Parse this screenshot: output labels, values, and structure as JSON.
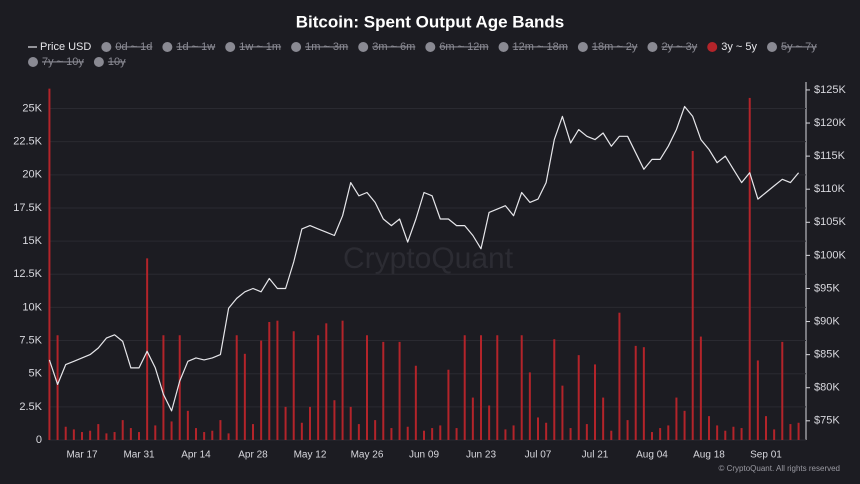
{
  "chart_data": {
    "type": "bar_line",
    "title": "Bitcoin: Spent Output Age Bands",
    "watermark": "CryptoQuant",
    "footer": "© CryptoQuant. All rights reserved",
    "legend_position": "top",
    "grid": true,
    "categories": [
      null,
      null,
      null,
      null,
      "Mar 17",
      null,
      null,
      null,
      null,
      null,
      null,
      "Mar 31",
      null,
      null,
      null,
      null,
      null,
      null,
      "Apr 14",
      null,
      null,
      null,
      null,
      null,
      null,
      "Apr 28",
      null,
      null,
      null,
      null,
      null,
      null,
      "May 12",
      null,
      null,
      null,
      null,
      null,
      null,
      "May 26",
      null,
      null,
      null,
      null,
      null,
      null,
      "Jun 09",
      null,
      null,
      null,
      null,
      null,
      null,
      "Jun 23",
      null,
      null,
      null,
      null,
      null,
      null,
      "Jul 07",
      null,
      null,
      null,
      null,
      null,
      null,
      "Jul 21",
      null,
      null,
      null,
      null,
      null,
      null,
      "Aug 04",
      null,
      null,
      null,
      null,
      null,
      null,
      "Aug 18",
      null,
      null,
      null,
      null,
      null,
      null,
      "Sep 01",
      null,
      null,
      null,
      null
    ],
    "ylim": [
      0,
      27000
    ],
    "yticks": [
      0,
      {
        "value": 2500,
        "label": "2.5K"
      },
      {
        "value": 5000,
        "label": "5K"
      },
      {
        "value": 7500,
        "label": "7.5K"
      },
      {
        "value": 10000,
        "label": "10K"
      },
      {
        "value": 12500,
        "label": "12.5K"
      },
      {
        "value": 15000,
        "label": "15K"
      },
      {
        "value": 17500,
        "label": "17.5K"
      },
      {
        "value": 20000,
        "label": "20K"
      },
      {
        "value": 22500,
        "label": "22.5K"
      },
      {
        "value": 25000,
        "label": "25K"
      }
    ],
    "y2lim": [
      72100,
      126200
    ],
    "y2ticks": [
      {
        "value": 75000,
        "label": "$75K"
      },
      {
        "value": 80000,
        "label": "$80K"
      },
      {
        "value": 85000,
        "label": "$85K"
      },
      {
        "value": 90000,
        "label": "$90K"
      },
      {
        "value": 95000,
        "label": "$95K"
      },
      {
        "value": 100000,
        "label": "$100K"
      },
      {
        "value": 105000,
        "label": "$105K"
      },
      {
        "value": 110000,
        "label": "$110K"
      },
      {
        "value": 115000,
        "label": "$115K"
      },
      {
        "value": 120000,
        "label": "$120K"
      },
      {
        "value": 125000,
        "label": "$125K"
      }
    ],
    "series": [
      {
        "name": "Price USD",
        "kind": "line",
        "axis": "y2",
        "visible": true,
        "color": "#e6e6ea",
        "values": [
          84200,
          80500,
          83500,
          84000,
          84500,
          85000,
          86000,
          87500,
          88000,
          87000,
          83000,
          83000,
          85500,
          83000,
          79000,
          76500,
          81000,
          84000,
          84500,
          84200,
          84500,
          85000,
          92000,
          93500,
          94500,
          95000,
          94500,
          96500,
          95000,
          95000,
          99000,
          104000,
          104500,
          104000,
          103500,
          103000,
          106000,
          111000,
          109000,
          109500,
          108000,
          105500,
          104500,
          105500,
          102000,
          105500,
          109500,
          109000,
          105500,
          105500,
          104500,
          104500,
          103000,
          101000,
          106500,
          107000,
          107500,
          106000,
          109500,
          108000,
          108500,
          111000,
          117500,
          121000,
          117000,
          119000,
          118000,
          117500,
          118500,
          116500,
          118000,
          118000,
          115500,
          113000,
          114500,
          114500,
          116500,
          119000,
          122500,
          121000,
          117500,
          116000,
          114000,
          115000,
          113000,
          111000,
          112500,
          108500,
          109500,
          110500,
          111500,
          111000,
          112500
        ]
      },
      {
        "name": "0d ~ 1d",
        "visible": false,
        "color": "#8a8a93"
      },
      {
        "name": "1d ~ 1w",
        "visible": false,
        "color": "#8a8a93"
      },
      {
        "name": "1w ~ 1m",
        "visible": false,
        "color": "#8a8a93"
      },
      {
        "name": "1m ~ 3m",
        "visible": false,
        "color": "#8a8a93"
      },
      {
        "name": "3m ~ 6m",
        "visible": false,
        "color": "#8a8a93"
      },
      {
        "name": "6m ~ 12m",
        "visible": false,
        "color": "#8a8a93"
      },
      {
        "name": "12m ~ 18m",
        "visible": false,
        "color": "#8a8a93"
      },
      {
        "name": "18m ~ 2y",
        "visible": false,
        "color": "#8a8a93"
      },
      {
        "name": "2y ~ 3y",
        "visible": false,
        "color": "#8a8a93"
      },
      {
        "name": "3y ~ 5y",
        "kind": "bar",
        "axis": "y",
        "visible": true,
        "color": "#b3242a",
        "values": [
          26500,
          7900,
          1000,
          800,
          600,
          700,
          1200,
          500,
          600,
          1500,
          900,
          600,
          13700,
          1100,
          7900,
          1400,
          7900,
          2200,
          900,
          600,
          700,
          1500,
          500,
          7900,
          6500,
          1200,
          7500,
          8900,
          9000,
          2500,
          8200,
          1300,
          2500,
          7900,
          8800,
          3000,
          9000,
          2500,
          1200,
          7900,
          1500,
          7400,
          900,
          7400,
          1000,
          5600,
          700,
          900,
          1100,
          5300,
          900,
          7900,
          3200,
          7900,
          2600,
          7900,
          800,
          1100,
          7900,
          5100,
          1700,
          1300,
          7600,
          4100,
          900,
          6400,
          1200,
          5700,
          3200,
          700,
          9600,
          1500,
          7100,
          7000,
          600,
          900,
          1100,
          3200,
          2200,
          21800,
          7800,
          1800,
          1100,
          700,
          1000,
          900,
          25800,
          6000,
          1800,
          800,
          7400,
          1200,
          1300
        ]
      },
      {
        "name": "5y ~ 7y",
        "visible": false,
        "color": "#8a8a93"
      },
      {
        "name": "7y ~ 10y",
        "visible": false,
        "color": "#8a8a93"
      },
      {
        "name": "10y",
        "visible": false,
        "color": "#8a8a93"
      }
    ]
  }
}
